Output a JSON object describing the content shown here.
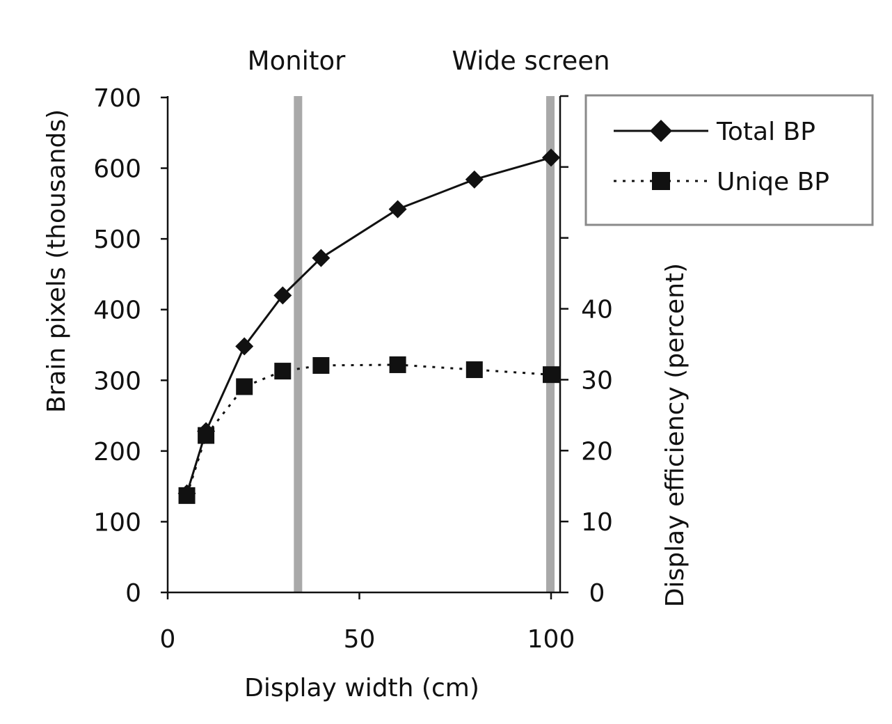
{
  "chart_data": {
    "type": "line",
    "x": [
      5,
      10,
      20,
      30,
      40,
      60,
      80,
      100
    ],
    "series": [
      {
        "name": "Total BP",
        "axis": "left",
        "values": [
          140,
          228,
          348,
          420,
          473,
          542,
          584,
          615
        ],
        "style": "solid",
        "marker": "diamond",
        "color": "#111111"
      },
      {
        "name": "Uniqe BP",
        "axis": "left",
        "values": [
          137,
          222,
          291,
          313,
          321,
          322,
          315,
          308
        ],
        "style": "dotted",
        "marker": "square",
        "color": "#111111"
      }
    ],
    "xlabel": "Display width (cm)",
    "ylabel": "Brain pixels (thousands)",
    "y2label": "Display efficiency (percent)",
    "xlim": [
      0,
      102
    ],
    "ylim": [
      0,
      700
    ],
    "y2lim": [
      0,
      70
    ],
    "x_ticks": [
      0,
      50,
      100
    ],
    "y_ticks": [
      0,
      100,
      200,
      300,
      400,
      500,
      600,
      700
    ],
    "y2_ticks": [
      0,
      10,
      20,
      30,
      40,
      50,
      60,
      70
    ],
    "y2_tick_labels_shown": [
      0,
      10,
      20,
      30,
      40
    ],
    "reference_lines": [
      {
        "x": 34,
        "label": "Monitor",
        "color": "#a9a9a9"
      },
      {
        "x": 100,
        "label": "Wide screen",
        "color": "#a9a9a9"
      }
    ],
    "grid": false,
    "legend_position": "top-right"
  }
}
